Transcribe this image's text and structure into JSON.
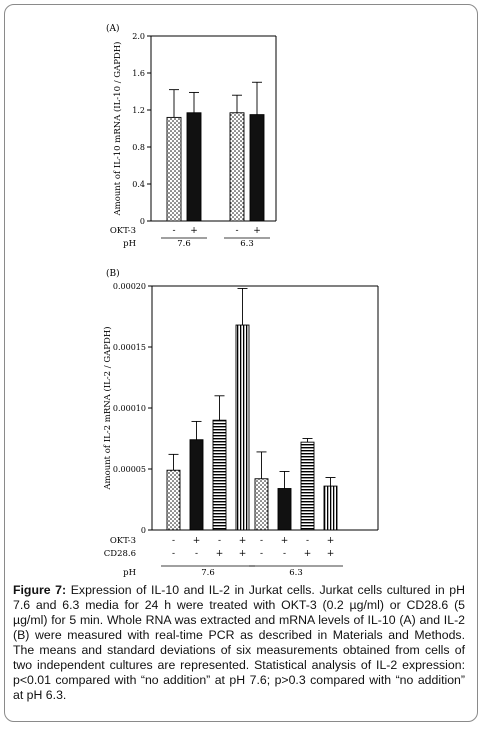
{
  "chart_data": [
    {
      "type": "bar",
      "panel_label": "(A)",
      "ylabel": "Amount of IL-10 mRNA (IL-10 / GAPDH)",
      "ylim": [
        0,
        2.0
      ],
      "yticks": [
        "0",
        "0.4",
        "0.8",
        "1.2",
        "1.6",
        "2.0"
      ],
      "row_labels": [
        "OKT-3",
        "pH"
      ],
      "groups": [
        {
          "ph": "7.6",
          "bars": [
            {
              "okt3": "-",
              "pattern": "dots",
              "value": 1.12,
              "sd": 0.3
            },
            {
              "okt3": "+",
              "pattern": "solid",
              "value": 1.17,
              "sd": 0.22
            }
          ]
        },
        {
          "ph": "6.3",
          "bars": [
            {
              "okt3": "-",
              "pattern": "dots",
              "value": 1.17,
              "sd": 0.19
            },
            {
              "okt3": "+",
              "pattern": "solid",
              "value": 1.15,
              "sd": 0.35
            }
          ]
        }
      ]
    },
    {
      "type": "bar",
      "panel_label": "(B)",
      "ylabel": "Amount of IL-2 mRNA (IL-2 / GAPDH)",
      "ylim": [
        0,
        0.0002
      ],
      "yticks": [
        "0",
        "0.00005",
        "0.00010",
        "0.00015",
        "0.00020"
      ],
      "row_labels": [
        "OKT-3",
        "CD28.6",
        "pH"
      ],
      "groups": [
        {
          "ph": "7.6",
          "bars": [
            {
              "okt3": "-",
              "cd28": "-",
              "pattern": "dots",
              "value": 4.9e-05,
              "sd": 1.3e-05
            },
            {
              "okt3": "+",
              "cd28": "-",
              "pattern": "solid",
              "value": 7.4e-05,
              "sd": 1.5e-05
            },
            {
              "okt3": "-",
              "cd28": "+",
              "pattern": "hstripes",
              "value": 9e-05,
              "sd": 2e-05
            },
            {
              "okt3": "+",
              "cd28": "+",
              "pattern": "vstripes",
              "value": 0.000168,
              "sd": 3e-05
            }
          ]
        },
        {
          "ph": "6.3",
          "bars": [
            {
              "okt3": "-",
              "cd28": "-",
              "pattern": "dots",
              "value": 4.2e-05,
              "sd": 2.2e-05
            },
            {
              "okt3": "+",
              "cd28": "-",
              "pattern": "solid",
              "value": 3.4e-05,
              "sd": 1.4e-05
            },
            {
              "okt3": "-",
              "cd28": "+",
              "pattern": "hstripes",
              "value": 7.2e-05,
              "sd": 3e-06
            },
            {
              "okt3": "+",
              "cd28": "+",
              "pattern": "vstripes",
              "value": 3.6e-05,
              "sd": 7e-06
            }
          ]
        }
      ]
    }
  ],
  "caption": {
    "label": "Figure 7:",
    "text": " Expression of IL-10 and IL-2 in Jurkat cells. Jurkat cells cultured in pH 7.6 and 6.3 media for 24 h were treated with OKT-3 (0.2 µg/ml) or CD28.6 (5 µg/ml) for 5 min. Whole RNA was extracted and mRNA levels of IL-10 (A) and IL-2 (B) were measured with real-time PCR as described in Materials and Methods. The means and standard deviations of six measurements obtained from cells of two independent cultures are represented. Statistical analysis of IL-2 expression: p<0.01 compared with “no addition” at pH 7.6; p>0.3 compared with “no addition” at pH 6.3."
  }
}
